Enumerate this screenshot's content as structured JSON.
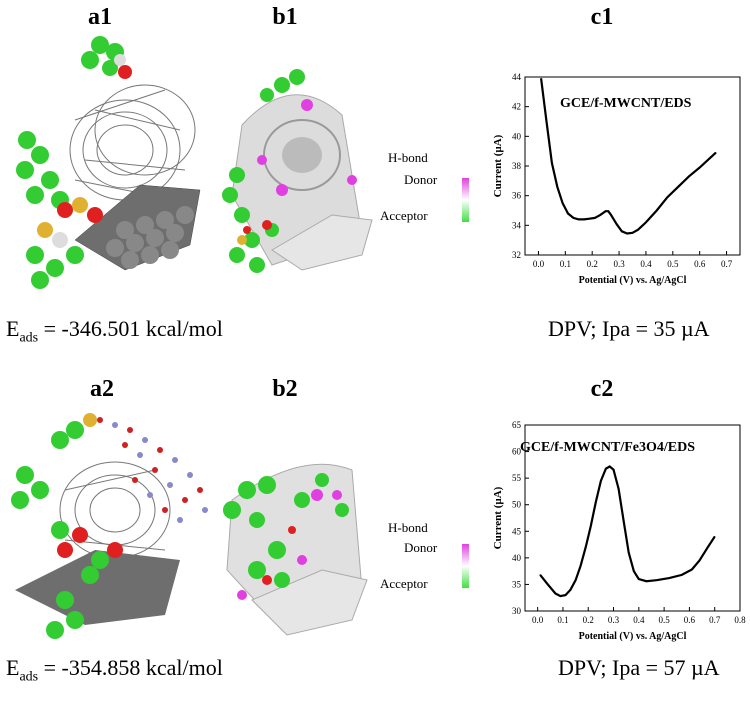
{
  "labels": {
    "a1": "a1",
    "b1": "b1",
    "c1": "c1",
    "a2": "a2",
    "b2": "b2",
    "c2": "c2"
  },
  "energy1": {
    "prefix": "E",
    "sub": "ads",
    "value": " = -346.501 kcal/mol"
  },
  "energy2": {
    "prefix": "E",
    "sub": "ads",
    "value": " = -354.858 kcal/mol"
  },
  "dpv1": "DPV; Ipa = 35 µA",
  "dpv2": "DPV; Ipa = 57 µA",
  "legend1": {
    "title": "H-bond",
    "donor": "Donor",
    "acceptor": "Acceptor"
  },
  "legend2": {
    "title": "H-bond",
    "donor": "Donor",
    "acceptor": "Acceptor"
  },
  "colors": {
    "donor": "#e040e0",
    "acceptor": "#40e040",
    "carbon": "#7a7a7a",
    "oxygen": "#e02020",
    "sulfur": "#e0b030",
    "green_atom": "#33cc33"
  },
  "chart_data": [
    {
      "type": "line",
      "title": "GCE/f-MWCNT/EDS",
      "xlabel": "Potential (V) vs. Ag/AgCl",
      "ylabel": "Current (µA)",
      "xlim": [
        -0.05,
        0.75
      ],
      "ylim": [
        32,
        44
      ],
      "xticks": [
        "0.0",
        "0.1",
        "0.2",
        "0.3",
        "0.4",
        "0.5",
        "0.6",
        "0.7"
      ],
      "yticks": [
        "32",
        "34",
        "36",
        "38",
        "40",
        "42",
        "44"
      ],
      "x": [
        0.01,
        0.03,
        0.05,
        0.07,
        0.09,
        0.11,
        0.13,
        0.15,
        0.17,
        0.19,
        0.21,
        0.23,
        0.25,
        0.26,
        0.27,
        0.29,
        0.31,
        0.33,
        0.35,
        0.37,
        0.4,
        0.44,
        0.48,
        0.52,
        0.56,
        0.6,
        0.63,
        0.66
      ],
      "y": [
        43.9,
        41.0,
        38.2,
        36.6,
        35.5,
        34.8,
        34.5,
        34.4,
        34.4,
        34.45,
        34.5,
        34.7,
        34.95,
        34.95,
        34.7,
        34.1,
        33.6,
        33.45,
        33.5,
        33.7,
        34.2,
        35.0,
        35.9,
        36.6,
        37.3,
        37.9,
        38.4,
        38.9
      ],
      "grid": false
    },
    {
      "type": "line",
      "title": "GCE/f-MWCNT/Fe3O4/EDS",
      "xlabel": "Potential (V) vs. Ag/AgCl",
      "ylabel": "Current (µA)",
      "xlim": [
        -0.05,
        0.8
      ],
      "ylim": [
        30,
        65
      ],
      "xticks": [
        "0.0",
        "0.1",
        "0.2",
        "0.3",
        "0.4",
        "0.5",
        "0.6",
        "0.7",
        "0.8"
      ],
      "yticks": [
        "30",
        "35",
        "40",
        "45",
        "50",
        "55",
        "60",
        "65"
      ],
      "x": [
        0.01,
        0.04,
        0.07,
        0.09,
        0.11,
        0.13,
        0.15,
        0.17,
        0.19,
        0.21,
        0.23,
        0.25,
        0.27,
        0.285,
        0.3,
        0.32,
        0.34,
        0.36,
        0.38,
        0.4,
        0.43,
        0.47,
        0.52,
        0.57,
        0.61,
        0.64,
        0.67,
        0.7
      ],
      "y": [
        36.8,
        35.0,
        33.3,
        32.8,
        33.0,
        34.0,
        35.8,
        38.5,
        42.0,
        46.0,
        50.5,
        54.5,
        56.8,
        57.2,
        56.6,
        53.0,
        47.0,
        41.0,
        37.5,
        36.0,
        35.6,
        35.8,
        36.2,
        36.8,
        37.8,
        39.5,
        41.8,
        44.0
      ],
      "grid": false
    }
  ]
}
